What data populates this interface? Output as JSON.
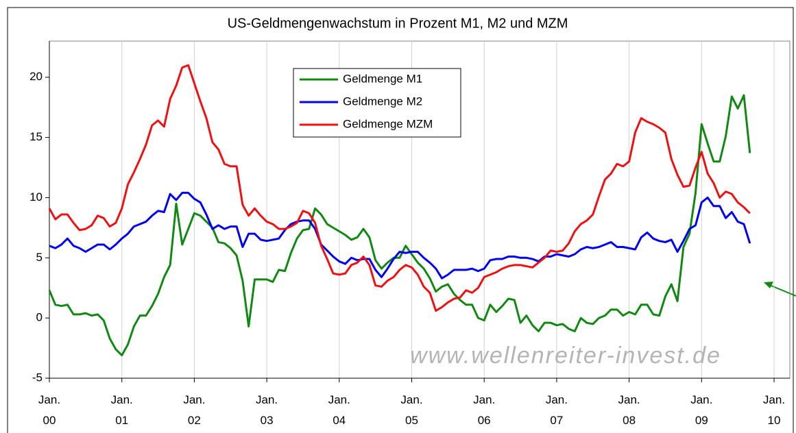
{
  "chart_data": {
    "type": "line",
    "title": "US-Geldmengenwachstum in Prozent M1, M2 und MZM",
    "watermark": "www.wellenreiter-invest.de",
    "x": [
      "2000-01",
      "2000-02",
      "2000-03",
      "2000-04",
      "2000-05",
      "2000-06",
      "2000-07",
      "2000-08",
      "2000-09",
      "2000-10",
      "2000-11",
      "2000-12",
      "2001-01",
      "2001-02",
      "2001-03",
      "2001-04",
      "2001-05",
      "2001-06",
      "2001-07",
      "2001-08",
      "2001-09",
      "2001-10",
      "2001-11",
      "2001-12",
      "2002-01",
      "2002-02",
      "2002-03",
      "2002-04",
      "2002-05",
      "2002-06",
      "2002-07",
      "2002-08",
      "2002-09",
      "2002-10",
      "2002-11",
      "2002-12",
      "2003-01",
      "2003-02",
      "2003-03",
      "2003-04",
      "2003-05",
      "2003-06",
      "2003-07",
      "2003-08",
      "2003-09",
      "2003-10",
      "2003-11",
      "2003-12",
      "2004-01",
      "2004-02",
      "2004-03",
      "2004-04",
      "2004-05",
      "2004-06",
      "2004-07",
      "2004-08",
      "2004-09",
      "2004-10",
      "2004-11",
      "2004-12",
      "2005-01",
      "2005-02",
      "2005-03",
      "2005-04",
      "2005-05",
      "2005-06",
      "2005-07",
      "2005-08",
      "2005-09",
      "2005-10",
      "2005-11",
      "2005-12",
      "2006-01",
      "2006-02",
      "2006-03",
      "2006-04",
      "2006-05",
      "2006-06",
      "2006-07",
      "2006-08",
      "2006-09",
      "2006-10",
      "2006-11",
      "2006-12",
      "2007-01",
      "2007-02",
      "2007-03",
      "2007-04",
      "2007-05",
      "2007-06",
      "2007-07",
      "2007-08",
      "2007-09",
      "2007-10",
      "2007-11",
      "2007-12",
      "2008-01",
      "2008-02",
      "2008-03",
      "2008-04",
      "2008-05",
      "2008-06",
      "2008-07",
      "2008-08",
      "2008-09",
      "2008-10",
      "2008-11",
      "2008-12",
      "2009-01",
      "2009-02",
      "2009-03",
      "2009-04",
      "2009-05",
      "2009-06",
      "2009-07",
      "2009-08",
      "2009-09"
    ],
    "series": [
      {
        "name": "Geldmenge M1",
        "color": "#118811",
        "values": [
          2.3,
          1.1,
          1.0,
          1.1,
          0.3,
          0.3,
          0.4,
          0.2,
          0.3,
          -0.2,
          -1.7,
          -2.6,
          -3.1,
          -2.2,
          -0.7,
          0.2,
          0.2,
          1.0,
          2.0,
          3.4,
          4.4,
          9.5,
          6.1,
          7.4,
          8.7,
          8.5,
          8.0,
          7.5,
          6.3,
          6.2,
          5.8,
          5.2,
          3.1,
          -0.7,
          3.2,
          3.2,
          3.2,
          3.0,
          4.0,
          3.9,
          5.4,
          6.6,
          7.3,
          7.4,
          9.1,
          8.6,
          7.8,
          7.5,
          7.2,
          6.9,
          6.5,
          6.7,
          7.4,
          6.7,
          4.8,
          4.1,
          4.6,
          5.0,
          5.0,
          6.0,
          5.3,
          4.6,
          4.1,
          3.3,
          2.2,
          2.6,
          2.8,
          2.0,
          1.5,
          1.1,
          1.1,
          0.0,
          -0.2,
          1.1,
          0.5,
          1.0,
          1.6,
          1.5,
          -0.4,
          0.2,
          -0.6,
          -1.1,
          -0.4,
          -0.4,
          -0.6,
          -0.5,
          -0.9,
          -1.1,
          0.0,
          -0.4,
          -0.5,
          0.0,
          0.2,
          0.7,
          0.7,
          0.2,
          0.5,
          0.3,
          1.1,
          1.1,
          0.3,
          0.2,
          1.8,
          2.8,
          1.4,
          5.9,
          7.0,
          10.4,
          16.1,
          14.5,
          13.0,
          13.0,
          15.1,
          18.4,
          17.4,
          18.5,
          13.7
        ]
      },
      {
        "name": "Geldmenge M2",
        "color": "#0000ee",
        "values": [
          6.0,
          5.8,
          6.1,
          6.6,
          6.0,
          5.8,
          5.5,
          5.8,
          6.1,
          6.1,
          5.7,
          6.1,
          6.6,
          7.0,
          7.6,
          7.8,
          8.0,
          8.5,
          8.9,
          8.8,
          10.3,
          9.8,
          10.4,
          10.4,
          9.9,
          9.6,
          8.6,
          7.4,
          7.7,
          7.4,
          7.6,
          7.6,
          5.9,
          7.0,
          7.0,
          6.5,
          6.4,
          6.5,
          6.6,
          7.3,
          7.8,
          8.0,
          8.1,
          8.1,
          7.4,
          6.1,
          5.6,
          5.1,
          4.7,
          4.5,
          5.0,
          4.8,
          4.9,
          4.9,
          4.0,
          3.4,
          4.1,
          4.9,
          5.5,
          5.4,
          5.5,
          5.5,
          5.0,
          4.6,
          4.1,
          3.3,
          3.6,
          4.0,
          4.0,
          4.0,
          4.1,
          3.9,
          4.1,
          4.8,
          4.9,
          4.9,
          5.1,
          5.1,
          5.0,
          5.0,
          4.9,
          4.7,
          5.1,
          5.1,
          5.3,
          5.2,
          5.1,
          5.3,
          5.7,
          5.9,
          5.8,
          5.9,
          6.1,
          6.3,
          5.9,
          5.9,
          5.8,
          5.7,
          6.7,
          7.1,
          6.6,
          6.4,
          6.3,
          6.5,
          5.5,
          6.4,
          7.4,
          7.7,
          9.6,
          10.0,
          9.3,
          9.3,
          8.3,
          8.8,
          8.0,
          7.8,
          6.2
        ]
      },
      {
        "name": "Geldmenge MZM",
        "color": "#ee1111",
        "values": [
          9.1,
          8.2,
          8.6,
          8.6,
          7.9,
          7.3,
          7.4,
          7.7,
          8.5,
          8.3,
          7.6,
          7.9,
          9.1,
          11.1,
          12.1,
          13.2,
          14.4,
          16.0,
          16.4,
          15.9,
          18.2,
          19.3,
          20.8,
          21.0,
          19.5,
          18.0,
          16.6,
          14.6,
          14.0,
          12.8,
          12.6,
          12.6,
          9.4,
          8.5,
          9.1,
          8.5,
          8.0,
          7.8,
          7.4,
          7.4,
          7.6,
          7.9,
          8.9,
          8.7,
          7.9,
          6.0,
          4.9,
          3.7,
          3.6,
          3.7,
          4.4,
          4.6,
          5.1,
          4.4,
          2.7,
          2.6,
          3.1,
          3.4,
          4.0,
          4.4,
          4.2,
          3.6,
          2.6,
          2.1,
          0.6,
          0.9,
          1.3,
          1.6,
          1.7,
          2.3,
          2.1,
          2.5,
          3.4,
          3.6,
          3.8,
          4.1,
          4.3,
          4.4,
          4.4,
          4.3,
          4.2,
          4.6,
          5.0,
          5.6,
          5.5,
          5.6,
          6.2,
          7.2,
          7.8,
          8.1,
          8.6,
          10.1,
          11.5,
          12.0,
          12.8,
          12.6,
          13.0,
          15.4,
          16.6,
          16.3,
          16.1,
          15.8,
          15.4,
          13.2,
          11.9,
          10.9,
          11.0,
          12.5,
          13.8,
          12.0,
          11.2,
          10.0,
          10.5,
          10.3,
          9.6,
          9.2,
          8.7
        ]
      }
    ],
    "xlim": [
      "2000-01",
      "2010-01"
    ],
    "xticks": [
      {
        "value": "2000-01",
        "label": "Jan. 00"
      },
      {
        "value": "2001-01",
        "label": "Jan. 01"
      },
      {
        "value": "2002-01",
        "label": "Jan. 02"
      },
      {
        "value": "2003-01",
        "label": "Jan. 03"
      },
      {
        "value": "2004-01",
        "label": "Jan. 04"
      },
      {
        "value": "2005-01",
        "label": "Jan. 05"
      },
      {
        "value": "2006-01",
        "label": "Jan. 06"
      },
      {
        "value": "2007-01",
        "label": "Jan. 07"
      },
      {
        "value": "2008-01",
        "label": "Jan. 08"
      },
      {
        "value": "2009-01",
        "label": "Jan. 09"
      },
      {
        "value": "2010-01",
        "label": "Jan. 10"
      }
    ],
    "ylim": [
      -5,
      23
    ],
    "yticks": [
      -5,
      0,
      5,
      10,
      15,
      20
    ],
    "grid": "x",
    "legend": "top-center"
  }
}
